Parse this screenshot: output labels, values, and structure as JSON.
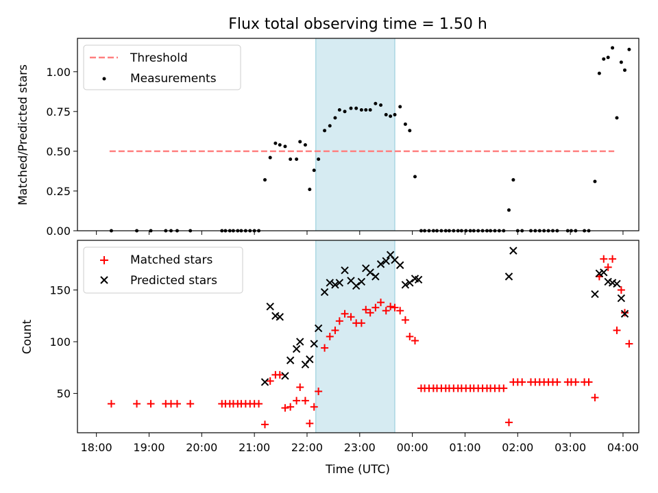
{
  "chart_data": [
    {
      "type": "scatter",
      "title": "Flux total observing time = 1.50 h",
      "xlabel": "",
      "ylabel": "Matched/Predicted stars",
      "ylim": [
        0.0,
        1.21
      ],
      "yticks": [
        "0.00",
        "0.25",
        "0.50",
        "0.75",
        "1.00"
      ],
      "xlim": [
        "18:00",
        "04:00"
      ],
      "highlight_span": [
        "22:10",
        "23:40"
      ],
      "highlight_color": "#add8e6",
      "legend_placement": "upper-left",
      "threshold": {
        "name": "Threshold",
        "value": 0.5,
        "x": [
          "18:15",
          "03:50"
        ],
        "color": "#ff7f7f"
      },
      "series": [
        {
          "name": "Measurements",
          "color": "#000000",
          "points": [
            [
              "18:17",
              0.0
            ],
            [
              "18:46",
              0.0
            ],
            [
              "19:02",
              0.0
            ],
            [
              "19:19",
              0.0
            ],
            [
              "19:25",
              0.0
            ],
            [
              "19:32",
              0.0
            ],
            [
              "19:47",
              0.0
            ],
            [
              "20:23",
              0.0
            ],
            [
              "20:27",
              0.0
            ],
            [
              "20:32",
              0.0
            ],
            [
              "20:36",
              0.0
            ],
            [
              "20:41",
              0.0
            ],
            [
              "20:45",
              0.0
            ],
            [
              "20:50",
              0.0
            ],
            [
              "20:55",
              0.0
            ],
            [
              "21:00",
              0.0
            ],
            [
              "21:05",
              0.0
            ],
            [
              "21:12",
              0.32
            ],
            [
              "21:18",
              0.46
            ],
            [
              "21:24",
              0.55
            ],
            [
              "21:29",
              0.54
            ],
            [
              "21:35",
              0.53
            ],
            [
              "21:41",
              0.45
            ],
            [
              "21:48",
              0.45
            ],
            [
              "21:52",
              0.56
            ],
            [
              "21:58",
              0.54
            ],
            [
              "22:03",
              0.26
            ],
            [
              "22:08",
              0.38
            ],
            [
              "22:13",
              0.45
            ],
            [
              "22:20",
              0.63
            ],
            [
              "22:26",
              0.66
            ],
            [
              "22:32",
              0.71
            ],
            [
              "22:37",
              0.76
            ],
            [
              "22:43",
              0.75
            ],
            [
              "22:50",
              0.77
            ],
            [
              "22:56",
              0.77
            ],
            [
              "23:02",
              0.76
            ],
            [
              "23:07",
              0.76
            ],
            [
              "23:12",
              0.76
            ],
            [
              "23:18",
              0.8
            ],
            [
              "23:24",
              0.79
            ],
            [
              "23:30",
              0.73
            ],
            [
              "23:35",
              0.72
            ],
            [
              "23:40",
              0.73
            ],
            [
              "23:46",
              0.78
            ],
            [
              "23:52",
              0.67
            ],
            [
              "23:57",
              0.63
            ],
            [
              "00:03",
              0.34
            ],
            [
              "00:10",
              0.0
            ],
            [
              "00:14",
              0.0
            ],
            [
              "00:19",
              0.0
            ],
            [
              "00:24",
              0.0
            ],
            [
              "00:28",
              0.0
            ],
            [
              "00:33",
              0.0
            ],
            [
              "00:38",
              0.0
            ],
            [
              "00:42",
              0.0
            ],
            [
              "00:47",
              0.0
            ],
            [
              "00:52",
              0.0
            ],
            [
              "00:56",
              0.0
            ],
            [
              "01:01",
              0.0
            ],
            [
              "01:06",
              0.0
            ],
            [
              "01:10",
              0.0
            ],
            [
              "01:15",
              0.0
            ],
            [
              "01:20",
              0.0
            ],
            [
              "01:25",
              0.0
            ],
            [
              "01:29",
              0.0
            ],
            [
              "01:34",
              0.0
            ],
            [
              "01:39",
              0.0
            ],
            [
              "01:44",
              0.0
            ],
            [
              "01:50",
              0.13
            ],
            [
              "01:55",
              0.32
            ],
            [
              "02:00",
              0.0
            ],
            [
              "02:05",
              0.0
            ],
            [
              "02:15",
              0.0
            ],
            [
              "02:20",
              0.0
            ],
            [
              "02:25",
              0.0
            ],
            [
              "02:30",
              0.0
            ],
            [
              "02:35",
              0.0
            ],
            [
              "02:40",
              0.0
            ],
            [
              "02:45",
              0.0
            ],
            [
              "02:57",
              0.0
            ],
            [
              "03:01",
              0.0
            ],
            [
              "03:06",
              0.0
            ],
            [
              "03:16",
              0.0
            ],
            [
              "03:21",
              0.0
            ],
            [
              "03:28",
              0.31
            ],
            [
              "03:33",
              0.99
            ],
            [
              "03:38",
              1.08
            ],
            [
              "03:43",
              1.09
            ],
            [
              "03:48",
              1.15
            ],
            [
              "03:53",
              0.71
            ],
            [
              "03:58",
              1.06
            ],
            [
              "04:02",
              1.01
            ],
            [
              "04:07",
              1.14
            ]
          ]
        }
      ]
    },
    {
      "type": "scatter",
      "xlabel": "Time (UTC)",
      "ylabel": "Count",
      "ylim": [
        12,
        198
      ],
      "yticks": [
        "50",
        "100",
        "150"
      ],
      "xlim": [
        "18:00",
        "04:00"
      ],
      "xticks": [
        "18:00",
        "19:00",
        "20:00",
        "21:00",
        "22:00",
        "23:00",
        "00:00",
        "01:00",
        "02:00",
        "03:00",
        "04:00"
      ],
      "highlight_span": [
        "22:10",
        "23:40"
      ],
      "highlight_color": "#add8e6",
      "legend_placement": "upper-left",
      "series": [
        {
          "name": "Matched stars",
          "marker": "+",
          "color": "#ff0000",
          "points": [
            [
              "18:17",
              40
            ],
            [
              "18:46",
              40
            ],
            [
              "19:02",
              40
            ],
            [
              "19:19",
              40
            ],
            [
              "19:25",
              40
            ],
            [
              "19:32",
              40
            ],
            [
              "19:47",
              40
            ],
            [
              "20:23",
              40
            ],
            [
              "20:27",
              40
            ],
            [
              "20:32",
              40
            ],
            [
              "20:36",
              40
            ],
            [
              "20:41",
              40
            ],
            [
              "20:45",
              40
            ],
            [
              "20:50",
              40
            ],
            [
              "20:55",
              40
            ],
            [
              "21:00",
              40
            ],
            [
              "21:05",
              40
            ],
            [
              "21:12",
              20
            ],
            [
              "21:18",
              62
            ],
            [
              "21:24",
              68
            ],
            [
              "21:29",
              68
            ],
            [
              "21:35",
              36
            ],
            [
              "21:41",
              37
            ],
            [
              "21:48",
              43
            ],
            [
              "21:52",
              56
            ],
            [
              "21:58",
              43
            ],
            [
              "22:03",
              21
            ],
            [
              "22:08",
              37
            ],
            [
              "22:13",
              52
            ],
            [
              "22:20",
              94
            ],
            [
              "22:26",
              105
            ],
            [
              "22:32",
              111
            ],
            [
              "22:37",
              120
            ],
            [
              "22:43",
              127
            ],
            [
              "22:50",
              124
            ],
            [
              "22:56",
              118
            ],
            [
              "23:02",
              118
            ],
            [
              "23:07",
              131
            ],
            [
              "23:12",
              128
            ],
            [
              "23:18",
              133
            ],
            [
              "23:24",
              138
            ],
            [
              "23:30",
              130
            ],
            [
              "23:35",
              134
            ],
            [
              "23:40",
              133
            ],
            [
              "23:46",
              130
            ],
            [
              "23:52",
              121
            ],
            [
              "23:57",
              105
            ],
            [
              "00:03",
              101
            ],
            [
              "00:10",
              55
            ],
            [
              "00:14",
              55
            ],
            [
              "00:19",
              55
            ],
            [
              "00:24",
              55
            ],
            [
              "00:28",
              55
            ],
            [
              "00:33",
              55
            ],
            [
              "00:38",
              55
            ],
            [
              "00:42",
              55
            ],
            [
              "00:47",
              55
            ],
            [
              "00:52",
              55
            ],
            [
              "00:56",
              55
            ],
            [
              "01:01",
              55
            ],
            [
              "01:06",
              55
            ],
            [
              "01:10",
              55
            ],
            [
              "01:15",
              55
            ],
            [
              "01:20",
              55
            ],
            [
              "01:25",
              55
            ],
            [
              "01:29",
              55
            ],
            [
              "01:34",
              55
            ],
            [
              "01:39",
              55
            ],
            [
              "01:44",
              55
            ],
            [
              "01:50",
              22
            ],
            [
              "01:55",
              61
            ],
            [
              "02:00",
              61
            ],
            [
              "02:05",
              61
            ],
            [
              "02:15",
              61
            ],
            [
              "02:20",
              61
            ],
            [
              "02:25",
              61
            ],
            [
              "02:30",
              61
            ],
            [
              "02:35",
              61
            ],
            [
              "02:40",
              61
            ],
            [
              "02:45",
              61
            ],
            [
              "02:57",
              61
            ],
            [
              "03:01",
              61
            ],
            [
              "03:06",
              61
            ],
            [
              "03:16",
              61
            ],
            [
              "03:21",
              61
            ],
            [
              "03:28",
              46
            ],
            [
              "03:33",
              163
            ],
            [
              "03:38",
              180
            ],
            [
              "03:43",
              172
            ],
            [
              "03:48",
              180
            ],
            [
              "03:53",
              111
            ],
            [
              "03:58",
              150
            ],
            [
              "04:02",
              128
            ],
            [
              "04:07",
              98
            ]
          ]
        },
        {
          "name": "Predicted stars",
          "marker": "x",
          "color": "#000000",
          "points": [
            [
              "21:12",
              61
            ],
            [
              "21:18",
              134
            ],
            [
              "21:24",
              125
            ],
            [
              "21:29",
              124
            ],
            [
              "21:35",
              67
            ],
            [
              "21:41",
              82
            ],
            [
              "21:48",
              93
            ],
            [
              "21:52",
              100
            ],
            [
              "21:58",
              78
            ],
            [
              "22:03",
              83
            ],
            [
              "22:08",
              98
            ],
            [
              "22:13",
              113
            ],
            [
              "22:20",
              148
            ],
            [
              "22:26",
              157
            ],
            [
              "22:32",
              155
            ],
            [
              "22:37",
              157
            ],
            [
              "22:43",
              169
            ],
            [
              "22:50",
              159
            ],
            [
              "22:56",
              154
            ],
            [
              "23:02",
              158
            ],
            [
              "23:07",
              171
            ],
            [
              "23:12",
              167
            ],
            [
              "23:18",
              163
            ],
            [
              "23:24",
              175
            ],
            [
              "23:30",
              178
            ],
            [
              "23:35",
              184
            ],
            [
              "23:40",
              179
            ],
            [
              "23:46",
              174
            ],
            [
              "23:52",
              155
            ],
            [
              "23:57",
              157
            ],
            [
              "00:03",
              161
            ],
            [
              "00:07",
              160
            ],
            [
              "01:50",
              163
            ],
            [
              "01:55",
              188
            ],
            [
              "03:28",
              146
            ],
            [
              "03:33",
              166
            ],
            [
              "03:38",
              167
            ],
            [
              "03:43",
              158
            ],
            [
              "03:48",
              157
            ],
            [
              "03:53",
              156
            ],
            [
              "03:58",
              142
            ],
            [
              "04:02",
              127
            ]
          ]
        }
      ]
    }
  ]
}
